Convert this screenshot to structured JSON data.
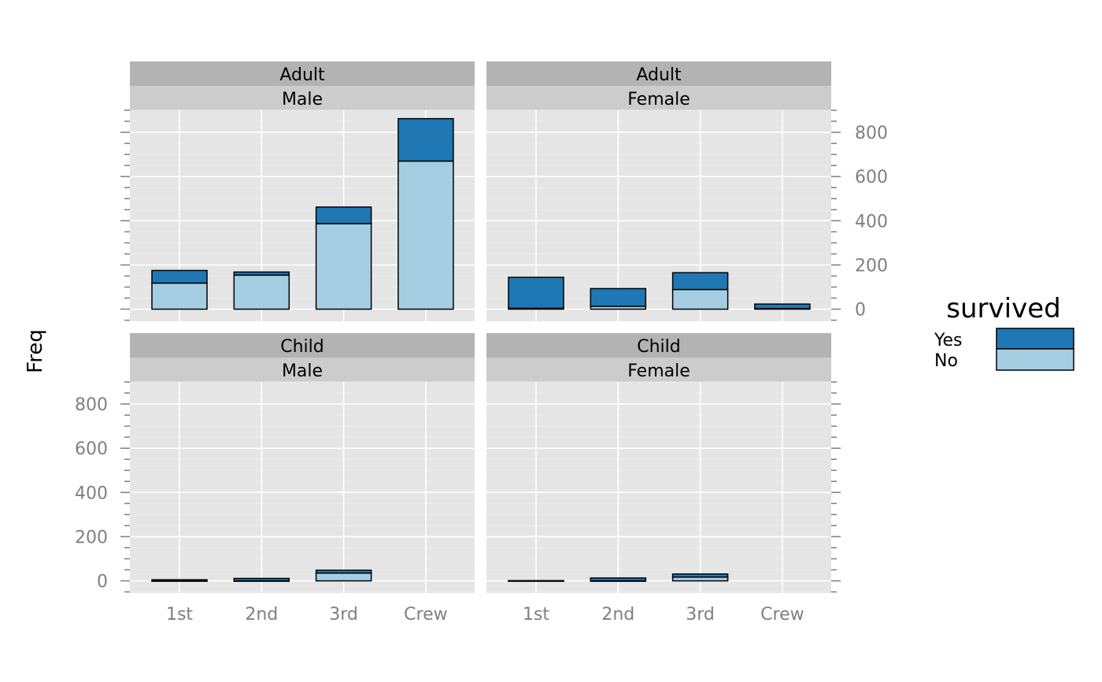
{
  "chart_data": {
    "type": "bar",
    "stacked": true,
    "categories": [
      "1st",
      "2nd",
      "3rd",
      "Crew"
    ],
    "ylabel": "Freq",
    "xlabel": "",
    "ylim": [
      -55,
      900
    ],
    "y_ticks": [
      0,
      200,
      400,
      600,
      800
    ],
    "grid": true,
    "legend": {
      "title": "survived",
      "position": "right",
      "entries": [
        {
          "label": "Yes",
          "color": "#1f78b4"
        },
        {
          "label": "No",
          "color": "#a6cee3"
        }
      ]
    },
    "panels": [
      {
        "strip_top": "Adult",
        "strip_bottom": "Male",
        "series": [
          {
            "name": "No",
            "values": [
              118,
              154,
              387,
              670
            ]
          },
          {
            "name": "Yes",
            "values": [
              57,
              14,
              75,
              192
            ]
          }
        ]
      },
      {
        "strip_top": "Adult",
        "strip_bottom": "Female",
        "series": [
          {
            "name": "No",
            "values": [
              4,
              13,
              89,
              3
            ]
          },
          {
            "name": "Yes",
            "values": [
              140,
              80,
              76,
              20
            ]
          }
        ]
      },
      {
        "strip_top": "Child",
        "strip_bottom": "Male",
        "series": [
          {
            "name": "No",
            "values": [
              0,
              0,
              35,
              0
            ]
          },
          {
            "name": "Yes",
            "values": [
              5,
              11,
              13,
              0
            ]
          }
        ]
      },
      {
        "strip_top": "Child",
        "strip_bottom": "Female",
        "series": [
          {
            "name": "No",
            "values": [
              0,
              0,
              17,
              0
            ]
          },
          {
            "name": "Yes",
            "values": [
              1,
              13,
              14,
              0
            ]
          }
        ]
      }
    ]
  },
  "colors": {
    "yes": "#1f78b4",
    "no": "#a6cee3",
    "panel_bg": "#e5e5e5",
    "strip_outer": "#b3b3b3",
    "strip_inner": "#cccccc",
    "grid_major": "#ffffff",
    "grid_minor": "#ebebeb",
    "axis_text": "#7f7f7f"
  }
}
